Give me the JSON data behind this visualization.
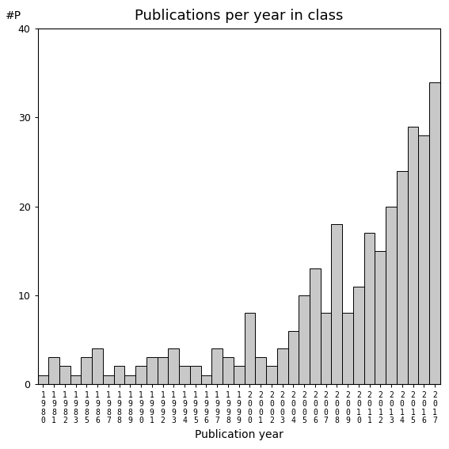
{
  "title": "Publications per year in class",
  "xlabel": "Publication year",
  "ylabel": "#P",
  "ylim": [
    0,
    40
  ],
  "yticks": [
    0,
    10,
    20,
    30,
    40
  ],
  "bar_color": "#c8c8c8",
  "bar_edge_color": "#000000",
  "bar_linewidth": 0.7,
  "years": [
    "1980",
    "1981",
    "1982",
    "1983",
    "1985",
    "1986",
    "1987",
    "1988",
    "1989",
    "1990",
    "1991",
    "1992",
    "1993",
    "1994",
    "1995",
    "1996",
    "1997",
    "1998",
    "1999",
    "2000",
    "2001",
    "2002",
    "2003",
    "2004",
    "2005",
    "2006",
    "2007",
    "2008",
    "2009",
    "2010",
    "2011",
    "2012",
    "2013",
    "2014",
    "2015",
    "2016",
    "2017"
  ],
  "values": [
    1,
    3,
    2,
    1,
    3,
    4,
    1,
    2,
    1,
    2,
    3,
    3,
    4,
    2,
    2,
    1,
    4,
    3,
    2,
    8,
    3,
    2,
    4,
    6,
    10,
    13,
    8,
    18,
    8,
    11,
    17,
    15,
    20,
    24,
    29,
    28,
    34
  ],
  "background_color": "#ffffff",
  "title_fontsize": 13,
  "label_fontsize": 10,
  "tick_fontsize": 7
}
